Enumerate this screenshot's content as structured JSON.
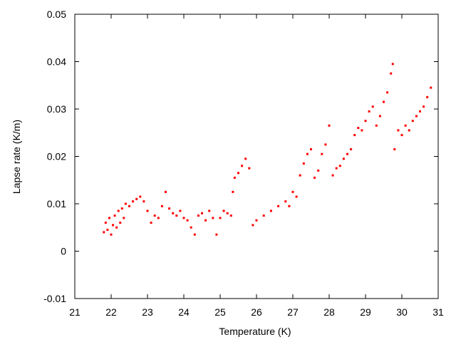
{
  "chart_data": {
    "type": "scatter",
    "xlabel": "Temperature (K)",
    "ylabel": "Lapse rate (K/m)",
    "xlim": [
      21,
      31
    ],
    "ylim": [
      -0.01,
      0.05
    ],
    "x_ticks": [
      "21",
      "22",
      "23",
      "24",
      "25",
      "26",
      "27",
      "28",
      "29",
      "30",
      "31"
    ],
    "y_ticks": [
      "-0.01",
      "0",
      "0.01",
      "0.02",
      "0.03",
      "0.04",
      "0.05"
    ],
    "grid": false,
    "series": [
      {
        "color": "#ff0000",
        "marker": "square",
        "points": [
          [
            21.8,
            0.004
          ],
          [
            21.85,
            0.006
          ],
          [
            21.9,
            0.0045
          ],
          [
            21.95,
            0.007
          ],
          [
            22.0,
            0.0035
          ],
          [
            22.05,
            0.0055
          ],
          [
            22.1,
            0.0075
          ],
          [
            22.15,
            0.005
          ],
          [
            22.2,
            0.0085
          ],
          [
            22.25,
            0.006
          ],
          [
            22.3,
            0.009
          ],
          [
            22.35,
            0.007
          ],
          [
            22.4,
            0.01
          ],
          [
            22.5,
            0.0095
          ],
          [
            22.6,
            0.0105
          ],
          [
            22.7,
            0.011
          ],
          [
            22.8,
            0.0115
          ],
          [
            22.9,
            0.0105
          ],
          [
            23.0,
            0.0085
          ],
          [
            23.1,
            0.006
          ],
          [
            23.2,
            0.0075
          ],
          [
            23.3,
            0.007
          ],
          [
            23.4,
            0.0095
          ],
          [
            23.5,
            0.0125
          ],
          [
            23.6,
            0.009
          ],
          [
            23.7,
            0.008
          ],
          [
            23.8,
            0.0075
          ],
          [
            23.9,
            0.0085
          ],
          [
            24.0,
            0.007
          ],
          [
            24.1,
            0.0065
          ],
          [
            24.2,
            0.005
          ],
          [
            24.3,
            0.0035
          ],
          [
            24.4,
            0.0075
          ],
          [
            24.5,
            0.008
          ],
          [
            24.6,
            0.0065
          ],
          [
            24.7,
            0.0085
          ],
          [
            24.8,
            0.007
          ],
          [
            24.9,
            0.0035
          ],
          [
            25.0,
            0.007
          ],
          [
            25.1,
            0.0085
          ],
          [
            25.2,
            0.008
          ],
          [
            25.3,
            0.0075
          ],
          [
            25.35,
            0.0125
          ],
          [
            25.4,
            0.0155
          ],
          [
            25.5,
            0.0165
          ],
          [
            25.6,
            0.018
          ],
          [
            25.7,
            0.0195
          ],
          [
            25.8,
            0.0175
          ],
          [
            25.9,
            0.0055
          ],
          [
            26.0,
            0.0065
          ],
          [
            26.2,
            0.0075
          ],
          [
            26.4,
            0.0085
          ],
          [
            26.6,
            0.0095
          ],
          [
            26.8,
            0.0105
          ],
          [
            26.9,
            0.0095
          ],
          [
            27.0,
            0.0125
          ],
          [
            27.1,
            0.0115
          ],
          [
            27.2,
            0.016
          ],
          [
            27.3,
            0.0185
          ],
          [
            27.4,
            0.0205
          ],
          [
            27.5,
            0.0215
          ],
          [
            27.6,
            0.0155
          ],
          [
            27.7,
            0.017
          ],
          [
            27.8,
            0.0205
          ],
          [
            27.9,
            0.0225
          ],
          [
            28.0,
            0.0265
          ],
          [
            28.1,
            0.016
          ],
          [
            28.2,
            0.0175
          ],
          [
            28.3,
            0.018
          ],
          [
            28.4,
            0.0195
          ],
          [
            28.5,
            0.0205
          ],
          [
            28.6,
            0.0215
          ],
          [
            28.7,
            0.0245
          ],
          [
            28.8,
            0.026
          ],
          [
            28.9,
            0.0255
          ],
          [
            29.0,
            0.0275
          ],
          [
            29.1,
            0.0295
          ],
          [
            29.2,
            0.0305
          ],
          [
            29.3,
            0.0265
          ],
          [
            29.4,
            0.0285
          ],
          [
            29.5,
            0.0315
          ],
          [
            29.6,
            0.0335
          ],
          [
            29.7,
            0.0375
          ],
          [
            29.75,
            0.0395
          ],
          [
            29.8,
            0.0215
          ],
          [
            29.9,
            0.0255
          ],
          [
            30.0,
            0.0245
          ],
          [
            30.1,
            0.0265
          ],
          [
            30.2,
            0.0255
          ],
          [
            30.3,
            0.0275
          ],
          [
            30.4,
            0.0285
          ],
          [
            30.5,
            0.0295
          ],
          [
            30.6,
            0.0305
          ],
          [
            30.7,
            0.0325
          ],
          [
            30.8,
            0.0345
          ]
        ]
      }
    ]
  }
}
